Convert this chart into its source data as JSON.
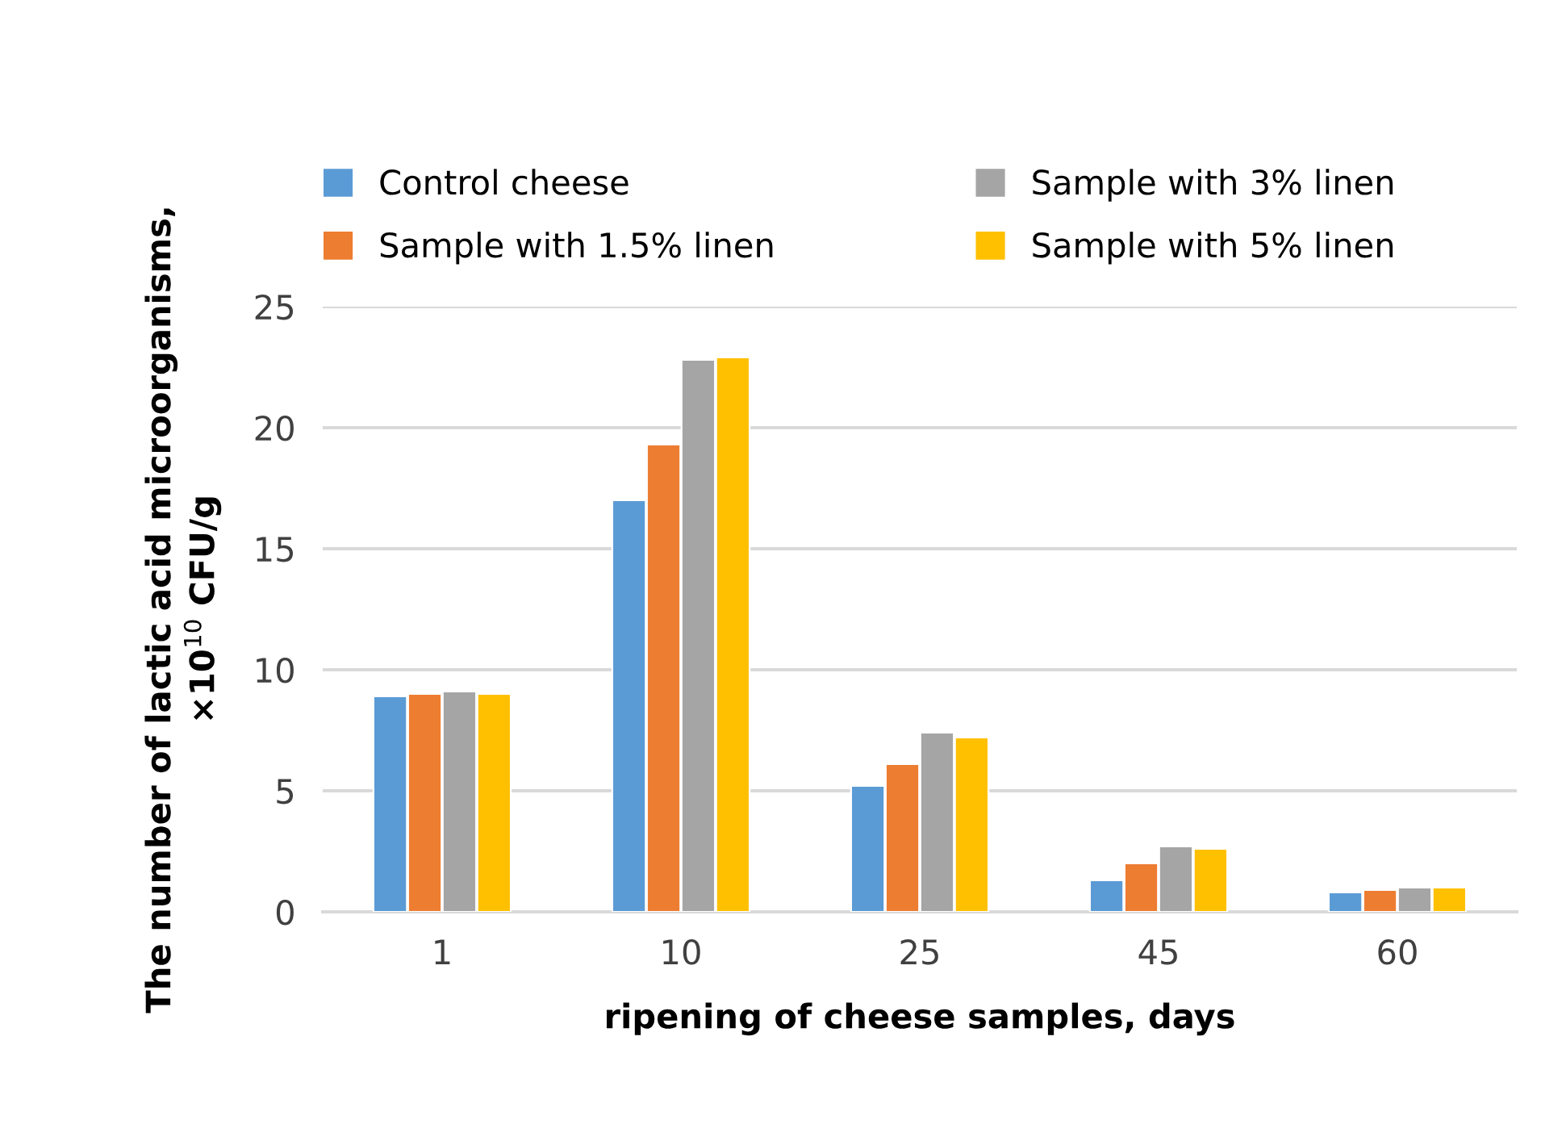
{
  "chart_data": {
    "type": "bar",
    "xlabel": "ripening of cheese samples, days",
    "ylabel": "The number of lactic acid microorganisms,\n×10$^{10}$ CFU/g",
    "categories": [
      "1",
      "10",
      "25",
      "45",
      "60"
    ],
    "series": [
      {
        "name": "Control cheese",
        "color": "#5b9bd5",
        "values": [
          8.9,
          17.0,
          5.2,
          1.3,
          0.8
        ]
      },
      {
        "name": "Sample with 1.5% linen",
        "color": "#ed7d31",
        "values": [
          9.0,
          19.3,
          6.1,
          2.0,
          0.9
        ]
      },
      {
        "name": "Sample with 3% linen",
        "color": "#a5a5a5",
        "values": [
          9.1,
          22.8,
          7.4,
          2.7,
          1.0
        ]
      },
      {
        "name": "Sample with 5% linen",
        "color": "#ffc000",
        "values": [
          9.0,
          22.9,
          7.2,
          2.6,
          1.0
        ]
      }
    ],
    "ylim": [
      0,
      25
    ],
    "yticks": [
      0,
      5,
      10,
      15,
      20,
      25
    ],
    "grid": "y",
    "legend": "top"
  }
}
